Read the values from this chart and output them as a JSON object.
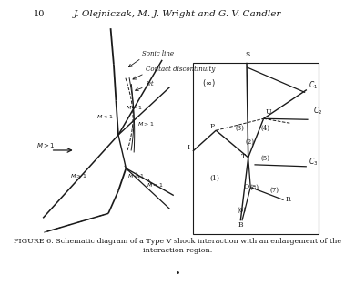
{
  "bg_color": "#ffffff",
  "line_color": "#1a1a1a",
  "text_color": "#1a1a1a",
  "caption1": "FIGURE 6. Schematic diagram of a Type V shock interaction with an enlargement of the",
  "caption2": "interaction region.",
  "header_num": "10",
  "header_authors": "J. Olejniczak, M. J. Wright and G. V. Candler"
}
